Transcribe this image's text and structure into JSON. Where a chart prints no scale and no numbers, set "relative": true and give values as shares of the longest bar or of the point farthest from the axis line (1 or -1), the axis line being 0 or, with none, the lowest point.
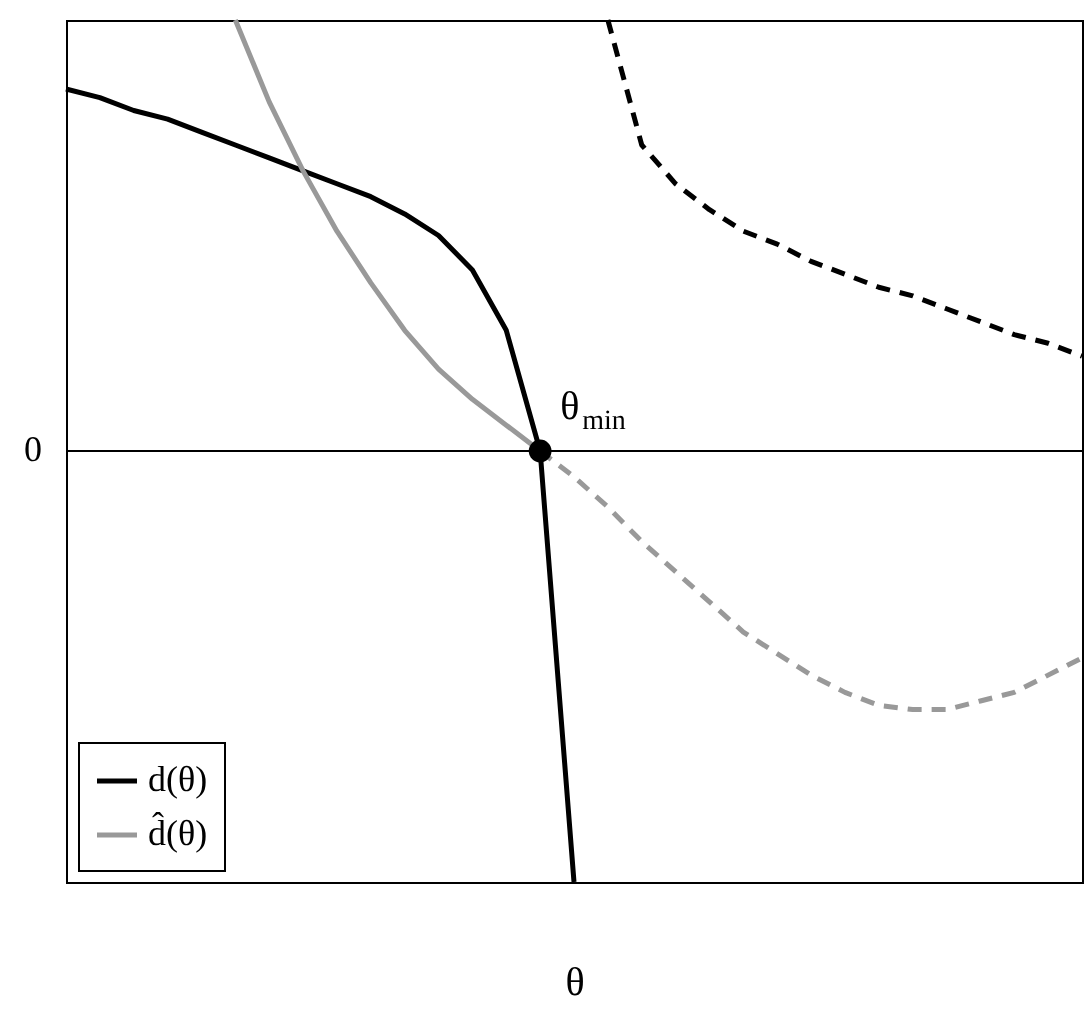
{
  "chart_data": {
    "type": "line",
    "relative": true,
    "xlabel": "θ",
    "legend": "bottom left",
    "grid": false,
    "categories": [
      null,
      null,
      null,
      null,
      null,
      null,
      null,
      null,
      null,
      null,
      null,
      null,
      null,
      null,
      null,
      null,
      null,
      null,
      null,
      null,
      null,
      null,
      null,
      null,
      null,
      null,
      null,
      null,
      null,
      null,
      null
    ],
    "series": [
      {
        "name": "d(θ)",
        "color": "#000000",
        "line_style": "solid",
        "values": [
          0.84,
          0.82,
          0.79,
          0.77,
          0.74,
          0.71,
          0.68,
          0.65,
          0.62,
          0.59,
          0.55,
          0.5,
          0.42,
          0.28,
          0,
          -1,
          null,
          null,
          null,
          null,
          null,
          null,
          null,
          null,
          null,
          null,
          null,
          null,
          null,
          null,
          null
        ]
      },
      {
        "color": "#000000",
        "line_style": "dashed",
        "values": [
          null,
          null,
          null,
          null,
          null,
          null,
          null,
          null,
          null,
          null,
          null,
          null,
          null,
          null,
          null,
          null,
          1,
          0.71,
          0.62,
          0.56,
          0.51,
          0.48,
          0.44,
          0.41,
          0.38,
          0.36,
          0.33,
          0.3,
          0.27,
          0.25,
          0.22
        ]
      },
      {
        "name": "d̂(θ)",
        "color": "#999999",
        "line_style": "solid",
        "values": [
          null,
          null,
          null,
          null,
          null,
          1,
          0.81,
          0.65,
          0.51,
          0.39,
          0.28,
          0.19,
          0.12,
          0.06,
          0,
          null,
          null,
          null,
          null,
          null,
          null,
          null,
          null,
          null,
          null,
          null,
          null,
          null,
          null,
          null,
          null
        ]
      },
      {
        "color": "#999999",
        "line_style": "dashed",
        "values": [
          null,
          null,
          null,
          null,
          null,
          null,
          null,
          null,
          null,
          null,
          null,
          null,
          null,
          null,
          0,
          -0.06,
          -0.13,
          -0.21,
          -0.28,
          -0.35,
          -0.42,
          -0.47,
          -0.52,
          -0.56,
          -0.59,
          -0.6,
          -0.6,
          -0.58,
          -0.56,
          -0.52,
          -0.48
        ]
      }
    ],
    "annotations": [
      "0",
      "θ$_{min}$"
    ]
  }
}
